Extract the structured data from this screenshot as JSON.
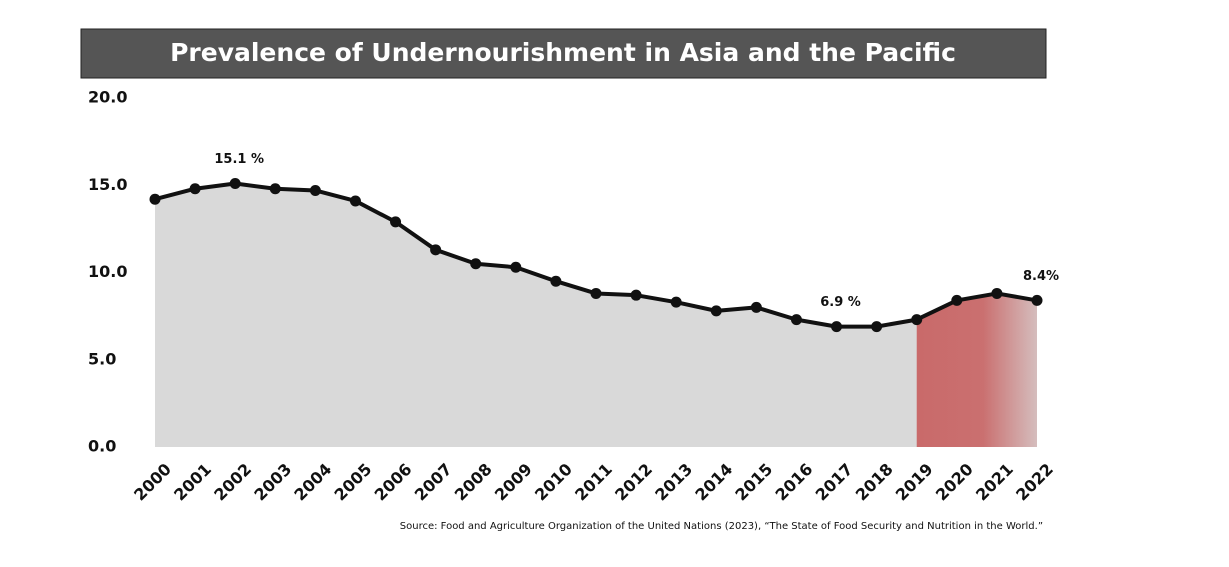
{
  "chart_data": {
    "type": "area-line",
    "title": "Prevalence of Undernourishment in Asia and the Pacific",
    "source": "Source:  Food and Agriculture Organization of the  United Nations (2023), “The State of Food Security and Nutrition in the World.”",
    "categories": [
      "2000",
      "2001",
      "2002",
      "2003",
      "2004",
      "2005",
      "2006",
      "2007",
      "2008",
      "2009",
      "2010",
      "2011",
      "2012",
      "2013",
      "2014",
      "2015",
      "2016",
      "2017",
      "2018",
      "2019",
      "2020",
      "2021",
      "2022"
    ],
    "values": [
      14.2,
      14.8,
      15.1,
      14.8,
      14.7,
      14.1,
      12.9,
      11.3,
      10.5,
      10.3,
      9.5,
      8.8,
      8.7,
      8.3,
      7.8,
      8.0,
      7.3,
      6.9,
      6.9,
      7.3,
      8.4,
      8.8,
      8.4
    ],
    "value_labels": [
      null,
      null,
      "15.1 %",
      null,
      null,
      null,
      null,
      null,
      null,
      null,
      null,
      null,
      null,
      null,
      null,
      null,
      null,
      "6.9 %",
      null,
      null,
      null,
      null,
      "8.4%"
    ],
    "color": "#111111",
    "area_color": "#d9d9d9",
    "highlight_from": "2019",
    "highlight_color": "#c96a6a",
    "ylim": [
      0,
      20
    ],
    "yticks": [
      {
        "value": 0,
        "label": "0.0"
      },
      {
        "value": 5,
        "label": "5.0"
      },
      {
        "value": 10,
        "label": "10.0"
      },
      {
        "value": 15,
        "label": "15.0"
      },
      {
        "value": 20,
        "label": "20.0"
      }
    ],
    "grid": false
  }
}
